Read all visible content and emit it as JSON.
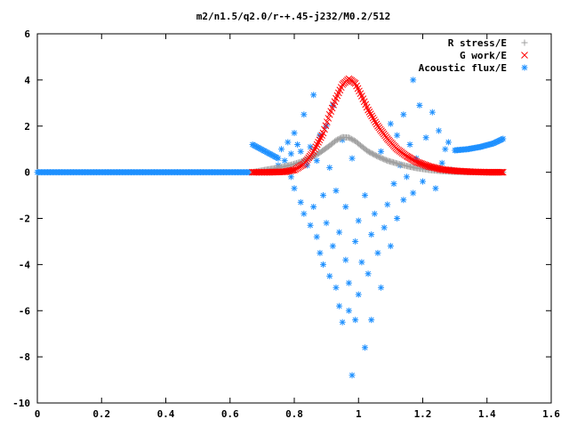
{
  "chart_data": {
    "type": "scatter",
    "title": "m2/n1.5/q2.0/r-+.45-j232/M0.2/512",
    "xlabel": "",
    "ylabel": "",
    "xlim": [
      0,
      1.6
    ],
    "ylim": [
      -10,
      6
    ],
    "xticks": [
      "0",
      "0.2",
      "0.4",
      "0.6",
      "0.8",
      "1",
      "1.2",
      "1.4",
      "1.6"
    ],
    "yticks": [
      "6",
      "4",
      "2",
      "0",
      "-2",
      "-4",
      "-6",
      "-8",
      "-10"
    ],
    "grid": false,
    "legend_position": "top-right",
    "series": [
      {
        "name": "R stress/E",
        "color": "#a0a0a0",
        "marker": "plus",
        "description_points": [
          [
            0.67,
            0.0
          ],
          [
            0.7,
            0.08
          ],
          [
            0.73,
            0.15
          ],
          [
            0.76,
            0.22
          ],
          [
            0.79,
            0.32
          ],
          [
            0.82,
            0.45
          ],
          [
            0.85,
            0.62
          ],
          [
            0.88,
            0.85
          ],
          [
            0.91,
            1.15
          ],
          [
            0.93,
            1.38
          ],
          [
            0.95,
            1.52
          ],
          [
            0.97,
            1.5
          ],
          [
            0.99,
            1.35
          ],
          [
            1.01,
            1.12
          ],
          [
            1.03,
            0.9
          ],
          [
            1.06,
            0.68
          ],
          [
            1.09,
            0.5
          ],
          [
            1.12,
            0.38
          ],
          [
            1.15,
            0.27
          ],
          [
            1.18,
            0.18
          ],
          [
            1.22,
            0.1
          ],
          [
            1.26,
            0.05
          ],
          [
            1.3,
            0.02
          ],
          [
            1.35,
            0.01
          ],
          [
            1.4,
            0.0
          ],
          [
            1.45,
            0.0
          ]
        ]
      },
      {
        "name": "G work/E",
        "color": "#ff0000",
        "marker": "cross",
        "description_points": [
          [
            0.67,
            0.0
          ],
          [
            0.72,
            0.0
          ],
          [
            0.77,
            0.02
          ],
          [
            0.8,
            0.1
          ],
          [
            0.83,
            0.35
          ],
          [
            0.86,
            0.9
          ],
          [
            0.89,
            1.7
          ],
          [
            0.91,
            2.5
          ],
          [
            0.93,
            3.2
          ],
          [
            0.95,
            3.8
          ],
          [
            0.97,
            4.05
          ],
          [
            0.99,
            3.85
          ],
          [
            1.01,
            3.3
          ],
          [
            1.03,
            2.7
          ],
          [
            1.06,
            2.0
          ],
          [
            1.09,
            1.45
          ],
          [
            1.12,
            1.0
          ],
          [
            1.15,
            0.7
          ],
          [
            1.18,
            0.45
          ],
          [
            1.22,
            0.25
          ],
          [
            1.26,
            0.12
          ],
          [
            1.3,
            0.06
          ],
          [
            1.35,
            0.02
          ],
          [
            1.4,
            0.0
          ],
          [
            1.45,
            0.0
          ]
        ]
      },
      {
        "name": "Acoustic flux/E",
        "color": "#1e90ff",
        "marker": "star",
        "description_points": [
          [
            0.0,
            0.0
          ],
          [
            0.1,
            0.0
          ],
          [
            0.2,
            0.0
          ],
          [
            0.3,
            0.0
          ],
          [
            0.4,
            0.0
          ],
          [
            0.5,
            0.0
          ],
          [
            0.6,
            0.0
          ],
          [
            0.66,
            0.0
          ],
          [
            0.67,
            1.2
          ],
          [
            0.69,
            1.05
          ],
          [
            0.71,
            0.9
          ],
          [
            0.73,
            0.75
          ],
          [
            0.75,
            0.6
          ],
          [
            1.3,
            0.95
          ],
          [
            1.34,
            1.0
          ],
          [
            1.38,
            1.1
          ],
          [
            1.42,
            1.25
          ],
          [
            1.45,
            1.45
          ],
          [
            0.75,
            0.3
          ],
          [
            0.76,
            1.0
          ],
          [
            0.77,
            0.5
          ],
          [
            0.78,
            1.3
          ],
          [
            0.79,
            -0.2
          ],
          [
            0.79,
            0.8
          ],
          [
            0.8,
            1.7
          ],
          [
            0.8,
            -0.7
          ],
          [
            0.81,
            1.2
          ],
          [
            0.82,
            0.9
          ],
          [
            0.82,
            -1.3
          ],
          [
            0.83,
            2.5
          ],
          [
            0.83,
            -1.8
          ],
          [
            0.84,
            0.3
          ],
          [
            0.85,
            -2.3
          ],
          [
            0.85,
            1.1
          ],
          [
            0.86,
            -1.5
          ],
          [
            0.86,
            3.35
          ],
          [
            0.87,
            -2.8
          ],
          [
            0.87,
            0.5
          ],
          [
            0.88,
            -3.5
          ],
          [
            0.88,
            1.6
          ],
          [
            0.89,
            -1.0
          ],
          [
            0.89,
            -4.0
          ],
          [
            0.9,
            2.0
          ],
          [
            0.9,
            -2.2
          ],
          [
            0.91,
            -4.5
          ],
          [
            0.91,
            0.2
          ],
          [
            0.92,
            -3.2
          ],
          [
            0.92,
            2.9
          ],
          [
            0.93,
            -5.0
          ],
          [
            0.93,
            -0.8
          ],
          [
            0.94,
            -2.6
          ],
          [
            0.94,
            -5.8
          ],
          [
            0.95,
            1.4
          ],
          [
            0.95,
            -6.5
          ],
          [
            0.96,
            -3.8
          ],
          [
            0.96,
            -1.5
          ],
          [
            0.97,
            -4.8
          ],
          [
            0.97,
            -6.0
          ],
          [
            0.98,
            -8.8
          ],
          [
            0.98,
            0.6
          ],
          [
            0.99,
            -3.0
          ],
          [
            0.99,
            -6.4
          ],
          [
            1.0,
            -5.3
          ],
          [
            1.0,
            -2.1
          ],
          [
            1.01,
            -3.9
          ],
          [
            1.02,
            -7.6
          ],
          [
            1.02,
            -1.0
          ],
          [
            1.03,
            -4.4
          ],
          [
            1.04,
            -6.4
          ],
          [
            1.04,
            -2.7
          ],
          [
            1.05,
            -1.8
          ],
          [
            1.06,
            -3.5
          ],
          [
            1.07,
            -5.0
          ],
          [
            1.07,
            0.9
          ],
          [
            1.08,
            -2.4
          ],
          [
            1.09,
            -1.4
          ],
          [
            1.1,
            -3.2
          ],
          [
            1.1,
            2.1
          ],
          [
            1.11,
            -0.5
          ],
          [
            1.12,
            1.6
          ],
          [
            1.12,
            -2.0
          ],
          [
            1.13,
            0.3
          ],
          [
            1.14,
            -1.2
          ],
          [
            1.14,
            2.5
          ],
          [
            1.15,
            -0.2
          ],
          [
            1.16,
            1.2
          ],
          [
            1.17,
            -0.9
          ],
          [
            1.17,
            4.0
          ],
          [
            1.18,
            0.6
          ],
          [
            1.19,
            2.9
          ],
          [
            1.2,
            -0.4
          ],
          [
            1.21,
            1.5
          ],
          [
            1.22,
            0.2
          ],
          [
            1.23,
            2.6
          ],
          [
            1.24,
            -0.7
          ],
          [
            1.25,
            1.8
          ],
          [
            1.26,
            0.4
          ],
          [
            1.27,
            1.0
          ],
          [
            1.28,
            1.3
          ],
          [
            1.29,
            0.1
          ]
        ]
      }
    ]
  }
}
